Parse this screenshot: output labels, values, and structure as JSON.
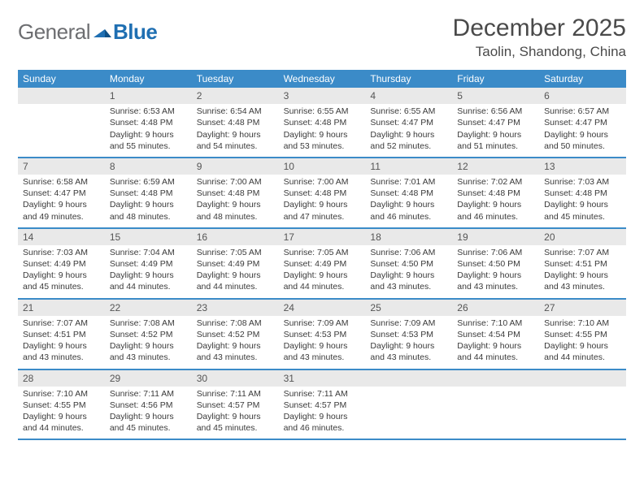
{
  "logo": {
    "general": "General",
    "blue": "Blue"
  },
  "title": "December 2025",
  "location": "Taolin, Shandong, China",
  "colors": {
    "header_bg": "#3b8bc8",
    "header_text": "#ffffff",
    "daynum_bg": "#e9e9e9",
    "row_border": "#3b8bc8",
    "body_text": "#3a3a3a",
    "logo_gray": "#6d6e71",
    "logo_blue": "#1f6fb2",
    "page_bg": "#ffffff"
  },
  "typography": {
    "title_fontsize": 30,
    "location_fontsize": 17,
    "weekday_fontsize": 12,
    "daynum_fontsize": 12,
    "body_fontsize": 10.5,
    "logo_fontsize": 26
  },
  "weekdays": [
    "Sunday",
    "Monday",
    "Tuesday",
    "Wednesday",
    "Thursday",
    "Friday",
    "Saturday"
  ],
  "weeks": [
    [
      {
        "num": "",
        "sunrise": "",
        "sunset": "",
        "daylight": ""
      },
      {
        "num": "1",
        "sunrise": "Sunrise: 6:53 AM",
        "sunset": "Sunset: 4:48 PM",
        "daylight": "Daylight: 9 hours and 55 minutes."
      },
      {
        "num": "2",
        "sunrise": "Sunrise: 6:54 AM",
        "sunset": "Sunset: 4:48 PM",
        "daylight": "Daylight: 9 hours and 54 minutes."
      },
      {
        "num": "3",
        "sunrise": "Sunrise: 6:55 AM",
        "sunset": "Sunset: 4:48 PM",
        "daylight": "Daylight: 9 hours and 53 minutes."
      },
      {
        "num": "4",
        "sunrise": "Sunrise: 6:55 AM",
        "sunset": "Sunset: 4:47 PM",
        "daylight": "Daylight: 9 hours and 52 minutes."
      },
      {
        "num": "5",
        "sunrise": "Sunrise: 6:56 AM",
        "sunset": "Sunset: 4:47 PM",
        "daylight": "Daylight: 9 hours and 51 minutes."
      },
      {
        "num": "6",
        "sunrise": "Sunrise: 6:57 AM",
        "sunset": "Sunset: 4:47 PM",
        "daylight": "Daylight: 9 hours and 50 minutes."
      }
    ],
    [
      {
        "num": "7",
        "sunrise": "Sunrise: 6:58 AM",
        "sunset": "Sunset: 4:47 PM",
        "daylight": "Daylight: 9 hours and 49 minutes."
      },
      {
        "num": "8",
        "sunrise": "Sunrise: 6:59 AM",
        "sunset": "Sunset: 4:48 PM",
        "daylight": "Daylight: 9 hours and 48 minutes."
      },
      {
        "num": "9",
        "sunrise": "Sunrise: 7:00 AM",
        "sunset": "Sunset: 4:48 PM",
        "daylight": "Daylight: 9 hours and 48 minutes."
      },
      {
        "num": "10",
        "sunrise": "Sunrise: 7:00 AM",
        "sunset": "Sunset: 4:48 PM",
        "daylight": "Daylight: 9 hours and 47 minutes."
      },
      {
        "num": "11",
        "sunrise": "Sunrise: 7:01 AM",
        "sunset": "Sunset: 4:48 PM",
        "daylight": "Daylight: 9 hours and 46 minutes."
      },
      {
        "num": "12",
        "sunrise": "Sunrise: 7:02 AM",
        "sunset": "Sunset: 4:48 PM",
        "daylight": "Daylight: 9 hours and 46 minutes."
      },
      {
        "num": "13",
        "sunrise": "Sunrise: 7:03 AM",
        "sunset": "Sunset: 4:48 PM",
        "daylight": "Daylight: 9 hours and 45 minutes."
      }
    ],
    [
      {
        "num": "14",
        "sunrise": "Sunrise: 7:03 AM",
        "sunset": "Sunset: 4:49 PM",
        "daylight": "Daylight: 9 hours and 45 minutes."
      },
      {
        "num": "15",
        "sunrise": "Sunrise: 7:04 AM",
        "sunset": "Sunset: 4:49 PM",
        "daylight": "Daylight: 9 hours and 44 minutes."
      },
      {
        "num": "16",
        "sunrise": "Sunrise: 7:05 AM",
        "sunset": "Sunset: 4:49 PM",
        "daylight": "Daylight: 9 hours and 44 minutes."
      },
      {
        "num": "17",
        "sunrise": "Sunrise: 7:05 AM",
        "sunset": "Sunset: 4:49 PM",
        "daylight": "Daylight: 9 hours and 44 minutes."
      },
      {
        "num": "18",
        "sunrise": "Sunrise: 7:06 AM",
        "sunset": "Sunset: 4:50 PM",
        "daylight": "Daylight: 9 hours and 43 minutes."
      },
      {
        "num": "19",
        "sunrise": "Sunrise: 7:06 AM",
        "sunset": "Sunset: 4:50 PM",
        "daylight": "Daylight: 9 hours and 43 minutes."
      },
      {
        "num": "20",
        "sunrise": "Sunrise: 7:07 AM",
        "sunset": "Sunset: 4:51 PM",
        "daylight": "Daylight: 9 hours and 43 minutes."
      }
    ],
    [
      {
        "num": "21",
        "sunrise": "Sunrise: 7:07 AM",
        "sunset": "Sunset: 4:51 PM",
        "daylight": "Daylight: 9 hours and 43 minutes."
      },
      {
        "num": "22",
        "sunrise": "Sunrise: 7:08 AM",
        "sunset": "Sunset: 4:52 PM",
        "daylight": "Daylight: 9 hours and 43 minutes."
      },
      {
        "num": "23",
        "sunrise": "Sunrise: 7:08 AM",
        "sunset": "Sunset: 4:52 PM",
        "daylight": "Daylight: 9 hours and 43 minutes."
      },
      {
        "num": "24",
        "sunrise": "Sunrise: 7:09 AM",
        "sunset": "Sunset: 4:53 PM",
        "daylight": "Daylight: 9 hours and 43 minutes."
      },
      {
        "num": "25",
        "sunrise": "Sunrise: 7:09 AM",
        "sunset": "Sunset: 4:53 PM",
        "daylight": "Daylight: 9 hours and 43 minutes."
      },
      {
        "num": "26",
        "sunrise": "Sunrise: 7:10 AM",
        "sunset": "Sunset: 4:54 PM",
        "daylight": "Daylight: 9 hours and 44 minutes."
      },
      {
        "num": "27",
        "sunrise": "Sunrise: 7:10 AM",
        "sunset": "Sunset: 4:55 PM",
        "daylight": "Daylight: 9 hours and 44 minutes."
      }
    ],
    [
      {
        "num": "28",
        "sunrise": "Sunrise: 7:10 AM",
        "sunset": "Sunset: 4:55 PM",
        "daylight": "Daylight: 9 hours and 44 minutes."
      },
      {
        "num": "29",
        "sunrise": "Sunrise: 7:11 AM",
        "sunset": "Sunset: 4:56 PM",
        "daylight": "Daylight: 9 hours and 45 minutes."
      },
      {
        "num": "30",
        "sunrise": "Sunrise: 7:11 AM",
        "sunset": "Sunset: 4:57 PM",
        "daylight": "Daylight: 9 hours and 45 minutes."
      },
      {
        "num": "31",
        "sunrise": "Sunrise: 7:11 AM",
        "sunset": "Sunset: 4:57 PM",
        "daylight": "Daylight: 9 hours and 46 minutes."
      },
      {
        "num": "",
        "sunrise": "",
        "sunset": "",
        "daylight": ""
      },
      {
        "num": "",
        "sunrise": "",
        "sunset": "",
        "daylight": ""
      },
      {
        "num": "",
        "sunrise": "",
        "sunset": "",
        "daylight": ""
      }
    ]
  ]
}
